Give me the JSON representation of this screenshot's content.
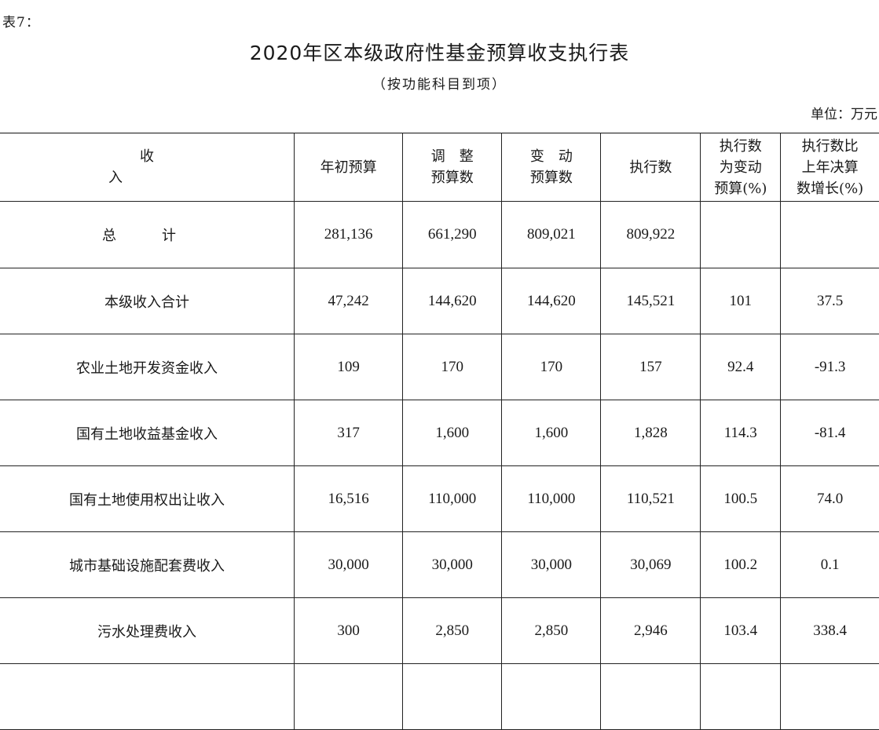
{
  "header": {
    "table_label": "表7：",
    "title": "2020年区本级政府性基金预算收支执行表",
    "subtitle": "（按功能科目到项）",
    "unit": "单位：万元"
  },
  "columns": {
    "c0": "收　　入",
    "c1": "年初预算",
    "c2_line1": "调　整",
    "c2_line2": "预算数",
    "c3_line1": "变　动",
    "c3_line2": "预算数",
    "c4": "执行数",
    "c5_line1": "执行数",
    "c5_line2": "为变动",
    "c5_line3": "预算(%)",
    "c6_line1": "执行数比",
    "c6_line2": "上年决算",
    "c6_line3": "数增长(%)"
  },
  "rows": [
    {
      "name": "总　计",
      "initial": "281,136",
      "adjusted": "661,290",
      "changed": "809,021",
      "executed": "809,922",
      "pct_of_changed": "",
      "growth": ""
    },
    {
      "name": "本级收入合计",
      "initial": "47,242",
      "adjusted": "144,620",
      "changed": "144,620",
      "executed": "145,521",
      "pct_of_changed": "101",
      "growth": "37.5"
    },
    {
      "name": "农业土地开发资金收入",
      "initial": "109",
      "adjusted": "170",
      "changed": "170",
      "executed": "157",
      "pct_of_changed": "92.4",
      "growth": "-91.3"
    },
    {
      "name": "国有土地收益基金收入",
      "initial": "317",
      "adjusted": "1,600",
      "changed": "1,600",
      "executed": "1,828",
      "pct_of_changed": "114.3",
      "growth": "-81.4"
    },
    {
      "name": "国有土地使用权出让收入",
      "initial": "16,516",
      "adjusted": "110,000",
      "changed": "110,000",
      "executed": "110,521",
      "pct_of_changed": "100.5",
      "growth": "74.0"
    },
    {
      "name": "城市基础设施配套费收入",
      "initial": "30,000",
      "adjusted": "30,000",
      "changed": "30,000",
      "executed": "30,069",
      "pct_of_changed": "100.2",
      "growth": "0.1"
    },
    {
      "name": "污水处理费收入",
      "initial": "300",
      "adjusted": "2,850",
      "changed": "2,850",
      "executed": "2,946",
      "pct_of_changed": "103.4",
      "growth": "338.4"
    }
  ]
}
